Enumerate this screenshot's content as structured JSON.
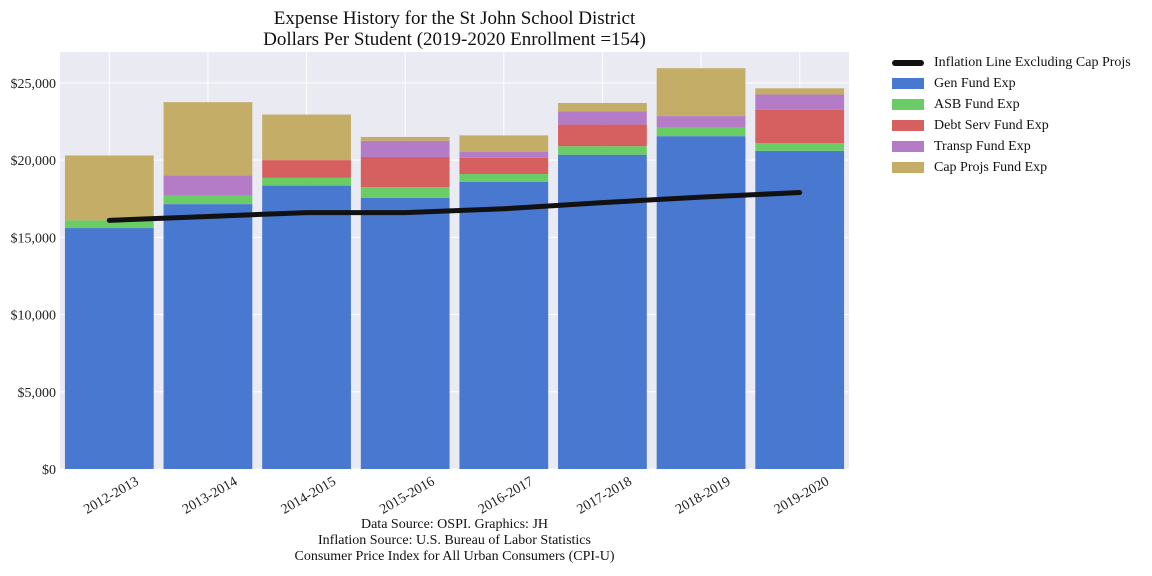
{
  "title_line1": "Expense History for the St John School District",
  "title_line2": "Dollars Per Student (2019-2020 Enrollment =154)",
  "source_lines": [
    "Data Source: OSPI. Graphics: JH",
    "Inflation Source: U.S. Bureau of Labor Statistics",
    "Consumer Price Index for All Urban Consumers (CPI-U)"
  ],
  "chart_data": {
    "type": "bar",
    "stacked": true,
    "categories": [
      "2012-2013",
      "2013-2014",
      "2014-2015",
      "2015-2016",
      "2016-2017",
      "2017-2018",
      "2018-2019",
      "2019-2020"
    ],
    "series": [
      {
        "name": "Gen Fund Exp",
        "color": "#4878d0",
        "values": [
          15600,
          17150,
          18350,
          17550,
          18600,
          20350,
          21550,
          20600
        ]
      },
      {
        "name": "ASB Fund Exp",
        "color": "#6acc64",
        "values": [
          500,
          550,
          500,
          700,
          500,
          550,
          550,
          500
        ]
      },
      {
        "name": "Debt Serv Fund Exp",
        "color": "#d65f5f",
        "values": [
          0,
          0,
          1150,
          1950,
          1050,
          1400,
          0,
          2150
        ]
      },
      {
        "name": "Transp Fund Exp",
        "color": "#b47cc7",
        "values": [
          0,
          1300,
          0,
          1050,
          400,
          850,
          750,
          1000
        ]
      },
      {
        "name": "Cap Projs Fund Exp",
        "color": "#c4ad66",
        "values": [
          4200,
          4750,
          2950,
          250,
          1050,
          550,
          3100,
          400
        ]
      }
    ],
    "line": {
      "name": "Inflation Line Excluding Cap Projs",
      "color": "#111111",
      "values": [
        16100,
        16350,
        16600,
        16600,
        16850,
        17250,
        17600,
        17900
      ]
    },
    "ylim": [
      0,
      27000
    ],
    "yticks": [
      0,
      5000,
      10000,
      15000,
      20000,
      25000
    ],
    "ytick_labels": [
      "$0",
      "$5,000",
      "$10,000",
      "$15,000",
      "$20,000",
      "$25,000"
    ],
    "xlabel": "",
    "ylabel": "",
    "grid": true,
    "legend_position": "outside-right"
  }
}
